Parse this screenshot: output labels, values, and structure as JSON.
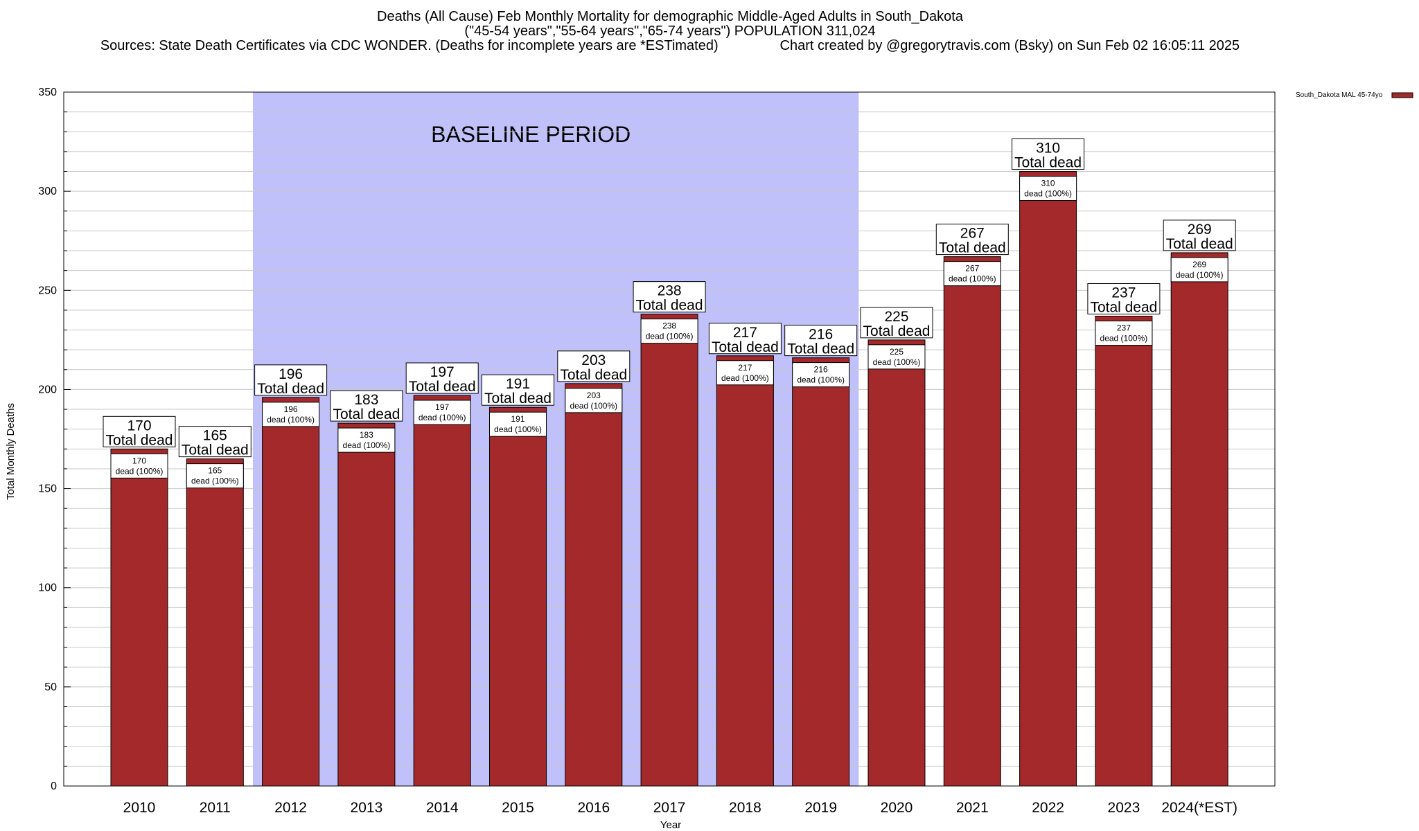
{
  "chart_data": {
    "type": "bar",
    "title_lines": [
      "Deaths (All Cause) Feb Monthly Mortality for demographic Middle-Aged Adults in South_Dakota",
      "(\"45-54 years\",\"55-64 years\",\"65-74 years\") POPULATION 311,024",
      "Sources: State Death Certificates via CDC WONDER. (Deaths for incomplete years are *ESTimated)                Chart created by @gregorytravis.com (Bsky) on Sun Feb 02 16:05:11 2025"
    ],
    "xlabel": "Year",
    "ylabel": "Total Monthly Deaths",
    "ylim": [
      0,
      350
    ],
    "yticks": [
      0,
      50,
      100,
      150,
      200,
      250,
      300,
      350
    ],
    "grid": true,
    "categories": [
      "2010",
      "2011",
      "2012",
      "2013",
      "2014",
      "2015",
      "2016",
      "2017",
      "2018",
      "2019",
      "2020",
      "2021",
      "2022",
      "2023",
      "2024(*EST)"
    ],
    "series": [
      {
        "name": "South_Dakota MAL 45-74yo",
        "values": [
          170,
          165,
          196,
          183,
          197,
          191,
          203,
          238,
          217,
          216,
          225,
          267,
          310,
          237,
          269
        ]
      }
    ],
    "bar_label_line1": "Total dead",
    "bar_inner_label_line2": "dead (100%)",
    "annotations": {
      "baseline_label": "BASELINE PERIOD",
      "baseline_range": [
        "2012",
        "2019"
      ]
    },
    "legend_position": "top-right",
    "colors": {
      "bar": "#a3292a",
      "baseline_band": "#c0c0fa",
      "grid": "#c8c8c8"
    }
  }
}
